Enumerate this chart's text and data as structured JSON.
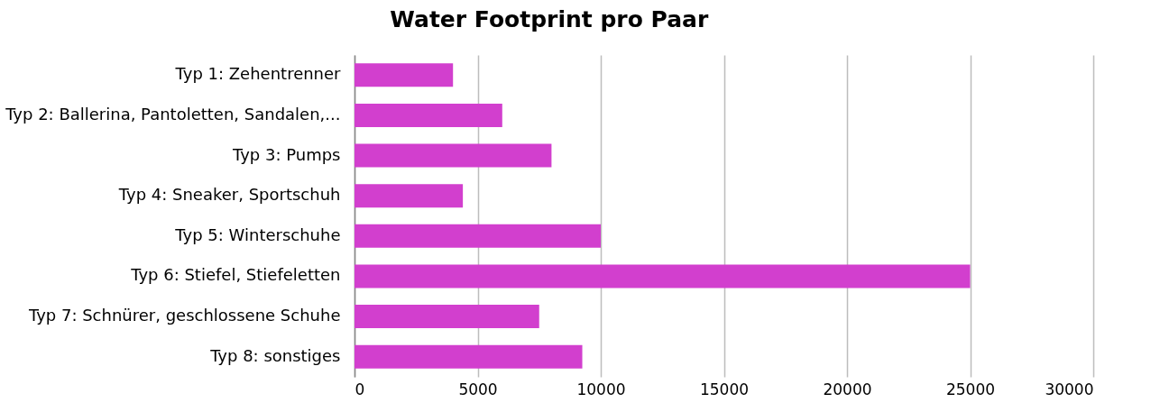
{
  "chart_data": {
    "type": "bar",
    "orientation": "horizontal",
    "title": "Water Footprint pro Paar",
    "categories": [
      "Typ 1: Zehentrenner",
      "Typ 2: Ballerina, Pantoletten, Sandalen,...",
      "Typ 3: Pumps",
      "Typ 4: Sneaker, Sportschuh",
      "Typ 5: Winterschuhe",
      "Typ 6: Stiefel, Stiefeletten",
      "Typ 7: Schnürer, geschlossene Schuhe",
      "Typ 8: sonstiges"
    ],
    "values": [
      4000,
      6000,
      8000,
      4400,
      10000,
      25000,
      7500,
      9250
    ],
    "color": "#d23fce",
    "xlim": [
      0,
      30000
    ],
    "xticks": [
      0,
      5000,
      10000,
      15000,
      20000,
      25000,
      30000
    ],
    "grid": "x"
  }
}
